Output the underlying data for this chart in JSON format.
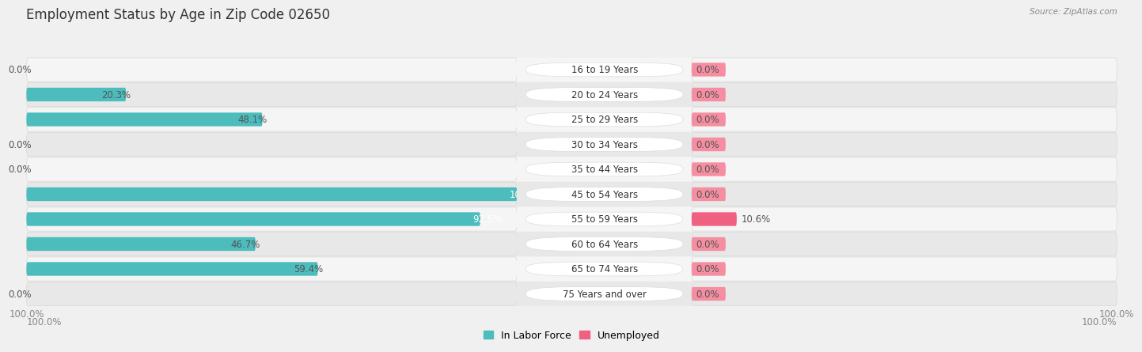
{
  "title": "Employment Status by Age in Zip Code 02650",
  "source": "Source: ZipAtlas.com",
  "age_groups": [
    "16 to 19 Years",
    "20 to 24 Years",
    "25 to 29 Years",
    "30 to 34 Years",
    "35 to 44 Years",
    "45 to 54 Years",
    "55 to 59 Years",
    "60 to 64 Years",
    "65 to 74 Years",
    "75 Years and over"
  ],
  "in_labor_force": [
    0.0,
    20.3,
    48.1,
    0.0,
    0.0,
    100.0,
    92.5,
    46.7,
    59.4,
    0.0
  ],
  "unemployed": [
    0.0,
    0.0,
    0.0,
    0.0,
    0.0,
    0.0,
    10.6,
    0.0,
    0.0,
    0.0
  ],
  "labor_color": "#4cbcbc",
  "labor_color_dark": "#3aacac",
  "unemployed_color": "#f48ea0",
  "unemployed_color_bright": "#f06080",
  "bg_color": "#f0f0f0",
  "row_odd": "#f5f5f5",
  "row_even": "#e8e8e8",
  "row_stroke": "#d8d8d8",
  "title_fontsize": 12,
  "label_fontsize": 8.5,
  "tick_fontsize": 8.5,
  "legend_fontsize": 9,
  "bar_height": 0.55
}
